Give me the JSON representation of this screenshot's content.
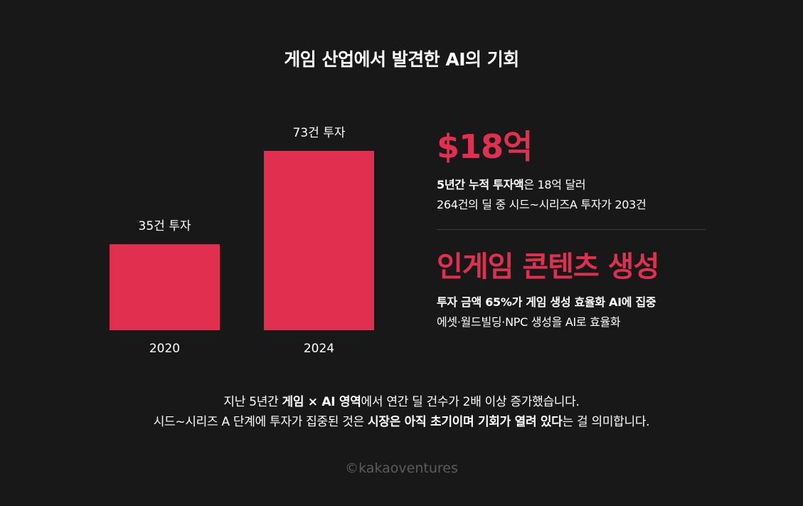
{
  "title": "게임 산업에서 발견한 AI의 기회",
  "chart_data": {
    "type": "bar",
    "categories": [
      "2020",
      "2024"
    ],
    "values": [
      35,
      73
    ],
    "value_labels": [
      "35건 투자",
      "73건 투자"
    ],
    "unit": "건",
    "color": "#e1304f"
  },
  "stats": {
    "amount_headline": "$18억",
    "amount_line1_bold": "5년간 누적 투자액",
    "amount_line1_rest": "은 18억 달러",
    "amount_line2": "264건의 딜 중 시드~시리즈A 투자가 203건",
    "focus_headline": "인게임 콘텐츠 생성",
    "focus_line1": "투자 금액 65%가 게임 생성 효율화 AI에 집중",
    "focus_line2": "에셋·월드빌딩·NPC 생성을 AI로 효율화"
  },
  "footer": {
    "line1_a": "지난 5년간 ",
    "line1_b": "게임 × AI 영역",
    "line1_c": "에서 연간 딜 건수가 2배 이상 증가했습니다.",
    "line2_a": "시드~시리즈 A 단계에 투자가 집중된 것은 ",
    "line2_b": "시장은 아직 초기이며 기회가 열려 있다",
    "line2_c": "는 걸 의미합니다."
  },
  "credit": "©kakaoventures",
  "colors": {
    "background": "#181818",
    "accent": "#e1304f",
    "text": "#ffffff",
    "muted": "#5c5c5c"
  }
}
